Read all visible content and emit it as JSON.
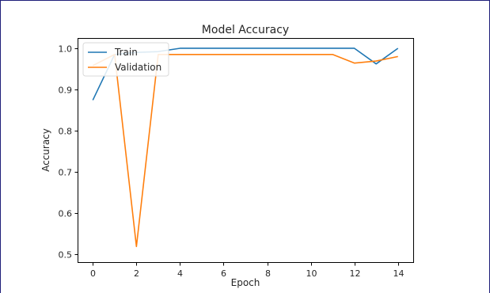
{
  "chart_data": {
    "type": "line",
    "title": "Model Accuracy",
    "xlabel": "Epoch",
    "ylabel": "Accuracy",
    "xlim": [
      -0.7,
      14.7
    ],
    "ylim": [
      0.48,
      1.025
    ],
    "xticks": [
      0,
      2,
      4,
      6,
      8,
      10,
      12,
      14
    ],
    "yticks": [
      0.5,
      0.6,
      0.7,
      0.8,
      0.9,
      1.0
    ],
    "ytick_labels": [
      "0.5",
      "0.6",
      "0.7",
      "0.8",
      "0.9",
      "1.0"
    ],
    "legend": "top-left",
    "grid": false,
    "series": [
      {
        "name": "Train",
        "color": "#1f77b4",
        "x": [
          0,
          1,
          2,
          3,
          4,
          5,
          6,
          7,
          8,
          9,
          10,
          11,
          12,
          13,
          14
        ],
        "values": [
          0.874,
          0.985,
          0.99,
          0.992,
          1.0,
          1.0,
          1.0,
          1.0,
          1.0,
          1.0,
          1.0,
          1.0,
          1.0,
          0.962,
          1.0
        ]
      },
      {
        "name": "Validation",
        "color": "#ff7f0e",
        "x": [
          0,
          1,
          2,
          3,
          4,
          5,
          6,
          7,
          8,
          9,
          10,
          11,
          12,
          13,
          14
        ],
        "values": [
          0.958,
          0.985,
          0.518,
          0.985,
          0.985,
          0.985,
          0.985,
          0.985,
          0.985,
          0.985,
          0.985,
          0.985,
          0.964,
          0.969,
          0.98
        ]
      }
    ]
  }
}
